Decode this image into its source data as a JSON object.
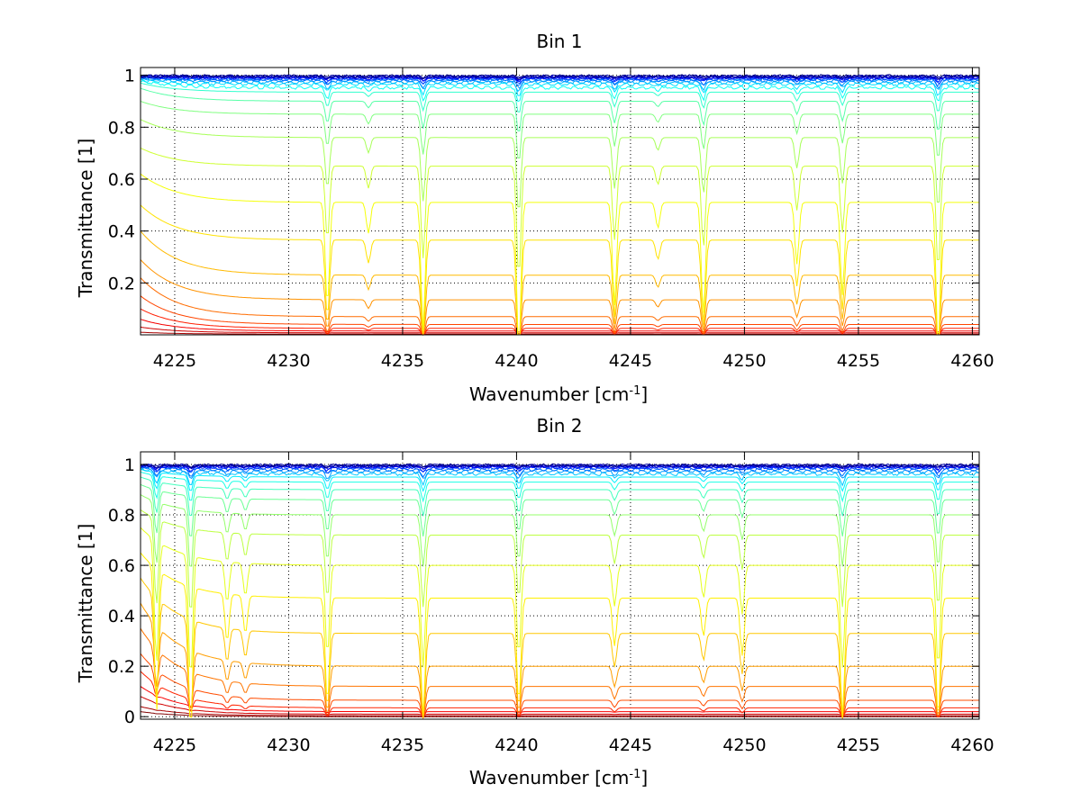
{
  "figure": {
    "background": "#ffffff"
  },
  "chart_data": [
    {
      "type": "line",
      "title": "Bin 1",
      "xlabel_main": "Wavenumber [cm",
      "xlabel_sup": "-1",
      "xlabel_end": "]",
      "ylabel": "Transmittance [1]",
      "xlim": [
        4223.5,
        4260.3
      ],
      "ylim": [
        0,
        1.03
      ],
      "x_ticks": [
        4225,
        4230,
        4235,
        4240,
        4245,
        4250,
        4255,
        4260
      ],
      "y_ticks": [
        0.2,
        0.4,
        0.6,
        0.8,
        1
      ],
      "grid": true,
      "colormap": "jet",
      "series_asymptotes": [
        0.0,
        0.003,
        0.008,
        0.015,
        0.025,
        0.04,
        0.07,
        0.135,
        0.23,
        0.365,
        0.51,
        0.65,
        0.76,
        0.85,
        0.9,
        0.935,
        0.955,
        0.968,
        0.976,
        0.982,
        0.986,
        0.99,
        0.993,
        0.995,
        0.997,
        0.999,
        1.0
      ],
      "series_starts": [
        0.0,
        0.01,
        0.03,
        0.06,
        0.1,
        0.15,
        0.22,
        0.29,
        0.4,
        0.5,
        0.62,
        0.72,
        0.83,
        0.9,
        0.95,
        0.97,
        0.98,
        0.985,
        0.99,
        0.992,
        0.995,
        0.997,
        0.998,
        0.999,
        1.0,
        1.0,
        1.0
      ],
      "absorption_lines": [
        {
          "x": 4231.7,
          "depth": 0.2
        },
        {
          "x": 4235.9,
          "depth": 0.25
        },
        {
          "x": 4240.1,
          "depth": 0.3
        },
        {
          "x": 4244.3,
          "depth": 0.2
        },
        {
          "x": 4248.2,
          "depth": 0.22
        },
        {
          "x": 4252.3,
          "depth": 0.12
        },
        {
          "x": 4254.3,
          "depth": 0.18
        },
        {
          "x": 4258.5,
          "depth": 0.28
        },
        {
          "x": 4233.5,
          "depth": 0.06
        },
        {
          "x": 4246.2,
          "depth": 0.05
        }
      ]
    },
    {
      "type": "line",
      "title": "Bin 2",
      "xlabel_main": "Wavenumber [cm",
      "xlabel_sup": "-1",
      "xlabel_end": "]",
      "ylabel": "Transmittance [1]",
      "xlim": [
        4223.5,
        4260.3
      ],
      "ylim": [
        -0.01,
        1.05
      ],
      "x_ticks": [
        4225,
        4230,
        4235,
        4240,
        4245,
        4250,
        4255,
        4260
      ],
      "y_ticks": [
        0,
        0.2,
        0.4,
        0.6,
        0.8,
        1
      ],
      "grid": true,
      "colormap": "jet",
      "series_asymptotes": [
        0.0,
        0.004,
        0.01,
        0.02,
        0.035,
        0.065,
        0.12,
        0.2,
        0.33,
        0.47,
        0.6,
        0.72,
        0.8,
        0.86,
        0.9,
        0.93,
        0.95,
        0.965,
        0.975,
        0.982,
        0.988,
        0.992,
        0.995,
        0.997,
        0.999,
        1.0
      ],
      "series_starts": [
        0.02,
        0.04,
        0.08,
        0.12,
        0.18,
        0.25,
        0.35,
        0.45,
        0.55,
        0.65,
        0.75,
        0.82,
        0.88,
        0.92,
        0.95,
        0.97,
        0.98,
        0.985,
        0.99,
        0.993,
        0.995,
        0.997,
        0.998,
        0.999,
        1.0,
        1.0
      ],
      "absorption_lines": [
        {
          "x": 4224.2,
          "depth": 0.3
        },
        {
          "x": 4225.7,
          "depth": 0.3
        },
        {
          "x": 4227.3,
          "depth": 0.1
        },
        {
          "x": 4228.1,
          "depth": 0.08
        },
        {
          "x": 4231.7,
          "depth": 0.22
        },
        {
          "x": 4235.9,
          "depth": 0.25
        },
        {
          "x": 4240.1,
          "depth": 0.22
        },
        {
          "x": 4244.3,
          "depth": 0.1
        },
        {
          "x": 4248.2,
          "depth": 0.08
        },
        {
          "x": 4249.9,
          "depth": 0.12
        },
        {
          "x": 4254.3,
          "depth": 0.25
        },
        {
          "x": 4258.5,
          "depth": 0.25
        }
      ]
    }
  ]
}
